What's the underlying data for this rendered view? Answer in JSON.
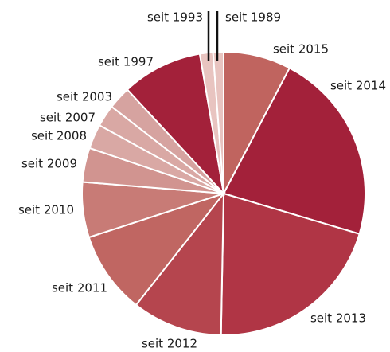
{
  "chart_data": {
    "type": "pie",
    "categories": [
      "seit 2015",
      "seit 2014",
      "seit 2013",
      "seit 2012",
      "seit 2011",
      "seit 2010",
      "seit 2009",
      "seit 2008",
      "seit 2007",
      "seit 2003",
      "seit 1997",
      "seit 1993",
      "seit 1989"
    ],
    "values": [
      7.7,
      21.9,
      20.7,
      10.3,
      9.4,
      6.3,
      3.9,
      2.8,
      2.5,
      2.6,
      9.2,
      1.5,
      1.2
    ],
    "colors": [
      "#c0645f",
      "#a3213a",
      "#b03545",
      "#b5454e",
      "#c06662",
      "#c87b76",
      "#d19490",
      "#d9a8a4",
      "#d9a8a4",
      "#d6a3a0",
      "#a3213a",
      "#e8c4c0",
      "#e8c4c0"
    ]
  }
}
